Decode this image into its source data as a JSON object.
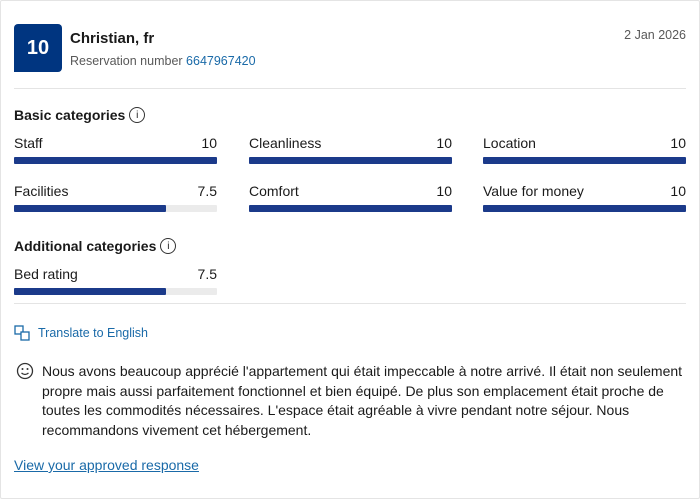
{
  "header": {
    "score": 10,
    "name": "Christian, fr",
    "reservation_label": "Reservation number",
    "reservation_number": "6647967420",
    "date": "2 Jan 2026"
  },
  "score_range": [
    0,
    10
  ],
  "basic": {
    "title": "Basic categories",
    "items": [
      {
        "label": "Staff",
        "score": 10
      },
      {
        "label": "Cleanliness",
        "score": 10
      },
      {
        "label": "Location",
        "score": 10
      },
      {
        "label": "Facilities",
        "score": 7.5
      },
      {
        "label": "Comfort",
        "score": 10
      },
      {
        "label": "Value for money",
        "score": 10
      }
    ]
  },
  "additional": {
    "title": "Additional categories",
    "items": [
      {
        "label": "Bed rating",
        "score": 7.5
      }
    ]
  },
  "translate": "Translate to English",
  "review": "Nous avons beaucoup apprécié l'appartement qui était impeccable à notre arrivé. Il était non seulement propre mais aussi parfaitement fonctionnel et bien équipé. De plus son emplacement était proche de toutes les commodités nécessaires. L'espace était agréable à vivre pendant notre séjour. Nous recommandons vivement cet hébergement.",
  "response_link": "View your approved response"
}
